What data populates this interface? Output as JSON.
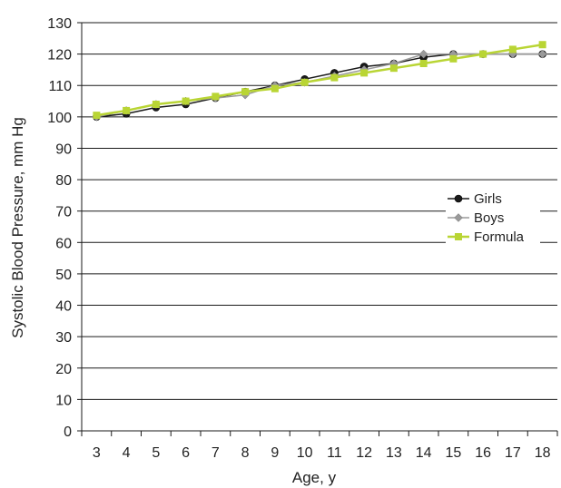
{
  "chart_data": {
    "type": "line",
    "xlabel": "Age, y",
    "ylabel": "Systolic Blood Pressure, mm Hg",
    "x": [
      3,
      4,
      5,
      6,
      7,
      8,
      9,
      10,
      11,
      12,
      13,
      14,
      15,
      16,
      17,
      18
    ],
    "xlim": [
      2.5,
      18.5
    ],
    "ylim": [
      0,
      130
    ],
    "yticks": [
      0,
      10,
      20,
      30,
      40,
      50,
      60,
      70,
      80,
      90,
      100,
      110,
      120,
      130
    ],
    "grid": "horizontal",
    "legend_position": "right",
    "series": [
      {
        "name": "Girls",
        "color": "#1a1a1a",
        "marker": "circle",
        "values": [
          100,
          101,
          103,
          104,
          106,
          108,
          110,
          112,
          114,
          116,
          117,
          119,
          120,
          120,
          120,
          120
        ]
      },
      {
        "name": "Boys",
        "color": "#9a9a9a",
        "marker": "diamond",
        "values": [
          100,
          102,
          104,
          105,
          106,
          107,
          110,
          111,
          113,
          115,
          117,
          120,
          120,
          120,
          120,
          120
        ]
      },
      {
        "name": "Formula",
        "color": "#b9d534",
        "marker": "square",
        "values": [
          100.5,
          102,
          104,
          105,
          106.5,
          108,
          109,
          111,
          112.5,
          114,
          115.5,
          117,
          118.5,
          120,
          121.5,
          123
        ]
      }
    ]
  }
}
